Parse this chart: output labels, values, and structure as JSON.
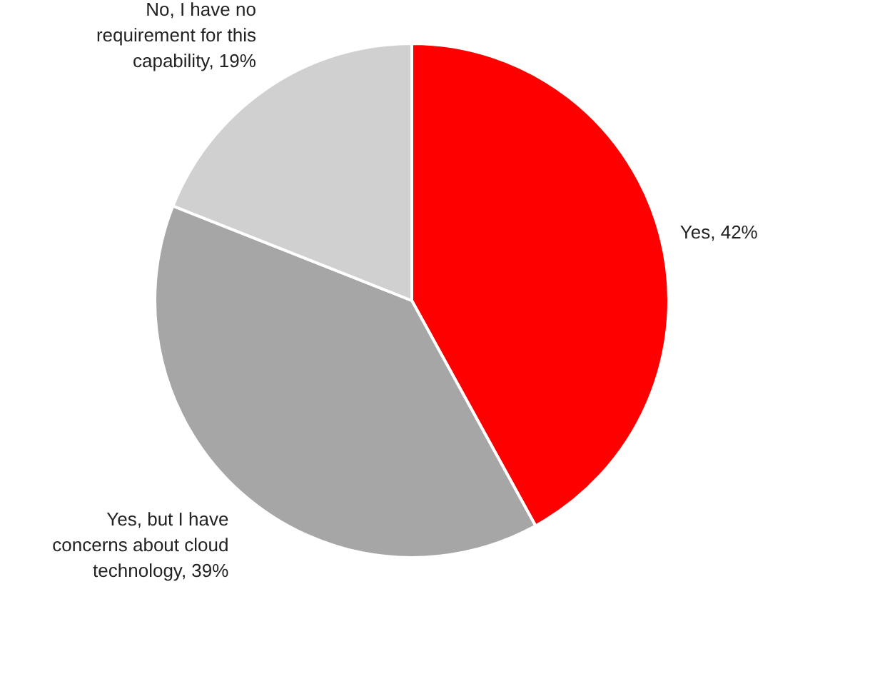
{
  "chart_data": {
    "type": "pie",
    "categories": [
      "Yes",
      "Yes, but I have concerns about cloud technology",
      "No, I have no requirement for this capability"
    ],
    "values": [
      42,
      39,
      19
    ],
    "value_labels": [
      ", 42%",
      ", 39%",
      ", 19%"
    ],
    "colors": [
      "#ff0000",
      "#a6a6a6",
      "#d0d0d0"
    ],
    "legend": false
  }
}
